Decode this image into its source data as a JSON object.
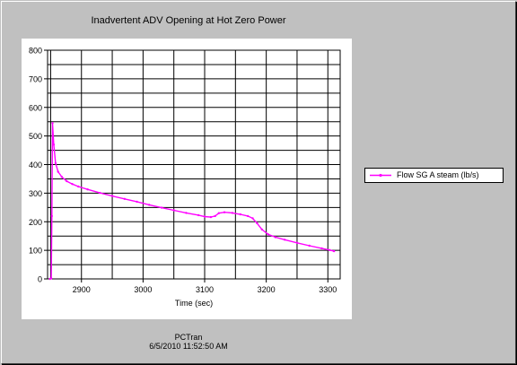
{
  "chart_data": {
    "type": "line",
    "title": "Inadvertent ADV Opening at Hot Zero Power",
    "xlabel": "Time (sec)",
    "ylabel": "",
    "xlim": [
      2845,
      3320
    ],
    "ylim": [
      0,
      800
    ],
    "xticks": [
      2900,
      3000,
      3100,
      3200,
      3300
    ],
    "yticks": [
      0,
      100,
      200,
      300,
      400,
      500,
      600,
      700,
      800
    ],
    "x_grid_step": 50,
    "grid": true,
    "legend_position": "right",
    "series": [
      {
        "name": "Flow SG A steam (lb/s)",
        "color": "#ff00ff",
        "points": [
          [
            2849,
            0
          ],
          [
            2851,
            2
          ],
          [
            2852,
            220
          ],
          [
            2853,
            545
          ],
          [
            2855,
            470
          ],
          [
            2858,
            405
          ],
          [
            2862,
            375
          ],
          [
            2868,
            357
          ],
          [
            2876,
            342
          ],
          [
            2885,
            332
          ],
          [
            2895,
            323
          ],
          [
            2910,
            313
          ],
          [
            2930,
            301
          ],
          [
            2950,
            290
          ],
          [
            2970,
            280
          ],
          [
            2990,
            270
          ],
          [
            3010,
            259
          ],
          [
            3030,
            249
          ],
          [
            3050,
            240
          ],
          [
            3070,
            231
          ],
          [
            3090,
            223
          ],
          [
            3100,
            218
          ],
          [
            3110,
            216
          ],
          [
            3117,
            220
          ],
          [
            3123,
            230
          ],
          [
            3132,
            233
          ],
          [
            3145,
            231
          ],
          [
            3158,
            226
          ],
          [
            3170,
            220
          ],
          [
            3178,
            212
          ],
          [
            3185,
            195
          ],
          [
            3193,
            173
          ],
          [
            3203,
            156
          ],
          [
            3215,
            146
          ],
          [
            3230,
            137
          ],
          [
            3250,
            126
          ],
          [
            3270,
            116
          ],
          [
            3290,
            107
          ],
          [
            3303,
            101
          ],
          [
            3310,
            97
          ]
        ]
      }
    ]
  },
  "footer": {
    "app_name": "PCTran",
    "timestamp": "6/5/2010 11:52:50 AM"
  }
}
